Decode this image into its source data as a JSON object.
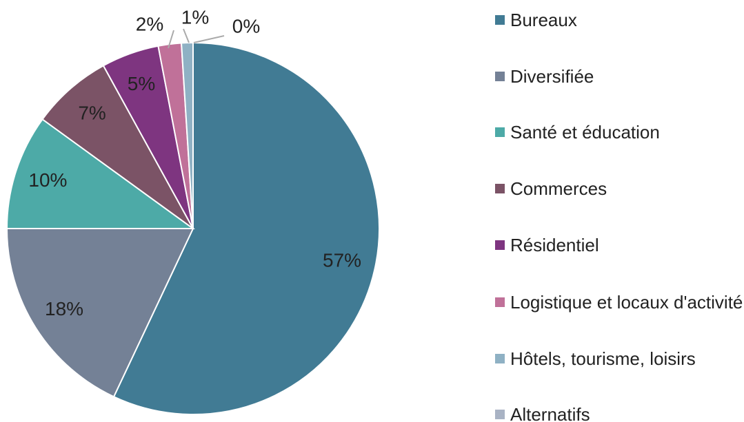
{
  "chart_data": {
    "type": "pie",
    "categories": [
      "Bureaux",
      "Diversifiée",
      "Santé et éducation",
      "Commerces",
      "Résidentiel",
      "Logistique et locaux d'activité",
      "Hôtels, tourisme, loisirs",
      "Alternatifs"
    ],
    "values": [
      57,
      18,
      10,
      7,
      5,
      2,
      1,
      0
    ],
    "value_labels": [
      "57%",
      "18%",
      "10%",
      "7%",
      "5%",
      "2%",
      "1%",
      "0%"
    ],
    "colors": [
      "#417b94",
      "#748196",
      "#4daaa7",
      "#7b5366",
      "#7e3580",
      "#c07199",
      "#8fb1c4",
      "#a9b3c4"
    ],
    "legend": "right"
  }
}
